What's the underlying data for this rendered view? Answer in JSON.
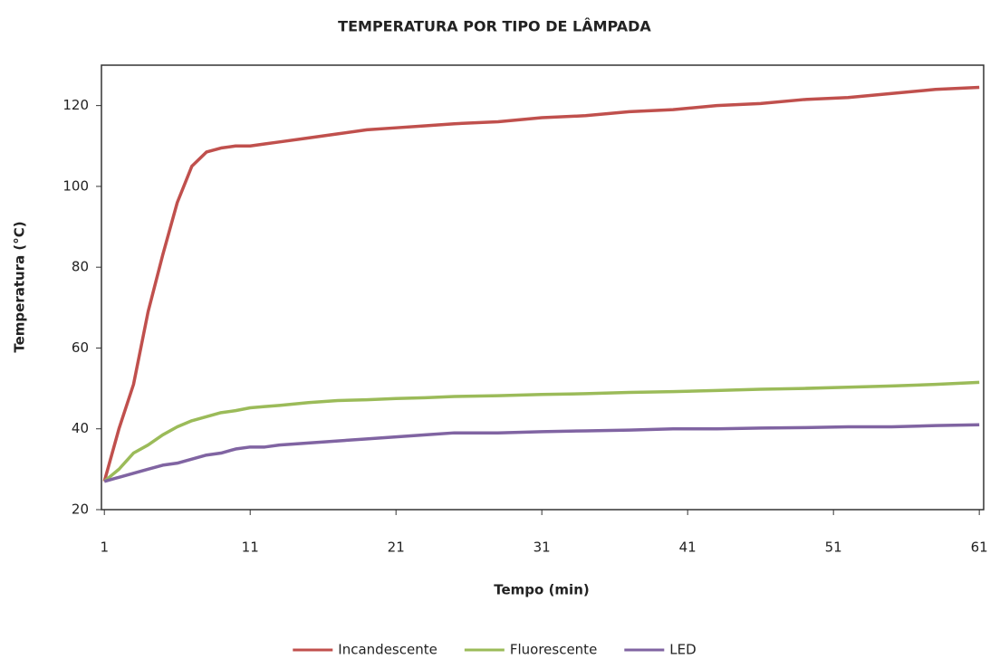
{
  "chart_data": {
    "type": "line",
    "title": "TEMPERATURA POR TIPO DE LÂMPADA",
    "x_label": "Tempo (min)",
    "y_label": "Temperatura (°C)",
    "x": [
      1,
      2,
      3,
      4,
      5,
      6,
      7,
      8,
      9,
      10,
      11,
      12,
      13,
      15,
      17,
      19,
      21,
      23,
      25,
      28,
      31,
      34,
      37,
      40,
      43,
      46,
      49,
      52,
      55,
      58,
      61
    ],
    "series": [
      {
        "name": "Incandescente",
        "color": "#c0504d",
        "values": [
          27,
          40,
          51,
          69,
          83,
          96,
          105,
          108.5,
          109.5,
          110,
          110,
          110.5,
          111,
          112,
          113,
          114,
          114.5,
          115,
          115.5,
          116,
          117,
          117.5,
          118.5,
          119,
          120,
          120.5,
          121.5,
          122,
          123,
          124,
          124.5
        ]
      },
      {
        "name": "Fluorescente",
        "color": "#9bbb59",
        "values": [
          27,
          30,
          34,
          36,
          38.5,
          40.5,
          42,
          43,
          44,
          44.5,
          45.2,
          45.5,
          45.8,
          46.5,
          47,
          47.2,
          47.5,
          47.7,
          48,
          48.2,
          48.5,
          48.7,
          49,
          49.2,
          49.5,
          49.8,
          50,
          50.3,
          50.6,
          51,
          51.5
        ]
      },
      {
        "name": "LED",
        "color": "#8064a2",
        "values": [
          27,
          28,
          29,
          30,
          31,
          31.5,
          32.5,
          33.5,
          34,
          35,
          35.5,
          35.5,
          36,
          36.5,
          37,
          37.5,
          38,
          38.5,
          39,
          39,
          39.3,
          39.5,
          39.7,
          40,
          40,
          40.2,
          40.3,
          40.5,
          40.5,
          40.8,
          41
        ]
      }
    ],
    "xlim": [
      0.8,
      61.3
    ],
    "xticks": [
      1,
      11,
      21,
      31,
      41,
      51,
      61
    ],
    "ylim": [
      20,
      130
    ],
    "yticks": [
      20,
      40,
      60,
      80,
      100,
      120
    ],
    "grid": false,
    "legend": "bottom"
  }
}
